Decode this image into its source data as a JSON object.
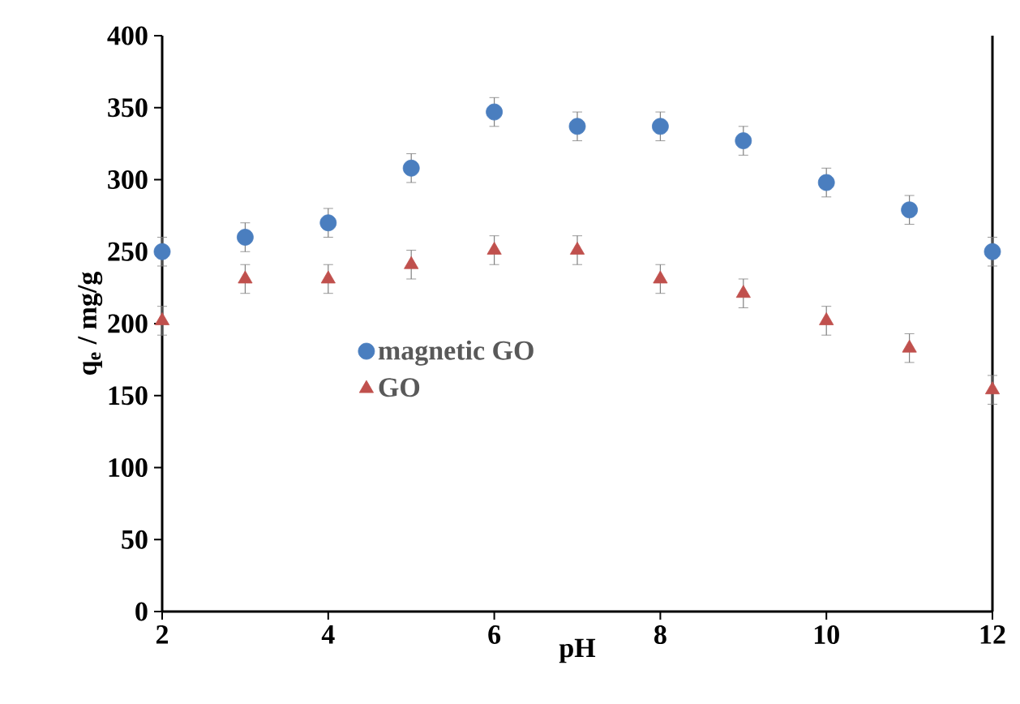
{
  "chart_data": {
    "type": "scatter",
    "xlabel": "pH",
    "ylabel": "q$_{e}$ / mg/g",
    "x": [
      2,
      3,
      4,
      5,
      6,
      7,
      8,
      9,
      10,
      11,
      12
    ],
    "series": [
      {
        "name": "magnetic GO",
        "color": "#4a7ebf",
        "marker": "circle",
        "values": [
          250,
          260,
          270,
          308,
          347,
          337,
          337,
          327,
          298,
          279,
          250
        ],
        "errors": [
          10,
          10,
          10,
          10,
          10,
          10,
          10,
          10,
          10,
          10,
          10
        ]
      },
      {
        "name": "GO",
        "color": "#c0504d",
        "marker": "triangle",
        "values": [
          202,
          231,
          231,
          241,
          251,
          251,
          231,
          221,
          202,
          183,
          154
        ],
        "errors": [
          10,
          10,
          10,
          10,
          10,
          10,
          10,
          10,
          10,
          10,
          10
        ]
      }
    ],
    "xlim": [
      2,
      12
    ],
    "xticks": [
      2,
      4,
      6,
      8,
      10,
      12
    ],
    "ylim": [
      0,
      400
    ],
    "yticks": [
      0,
      50,
      100,
      150,
      200,
      250,
      300,
      350,
      400
    ],
    "grid": false,
    "legend": "center"
  }
}
